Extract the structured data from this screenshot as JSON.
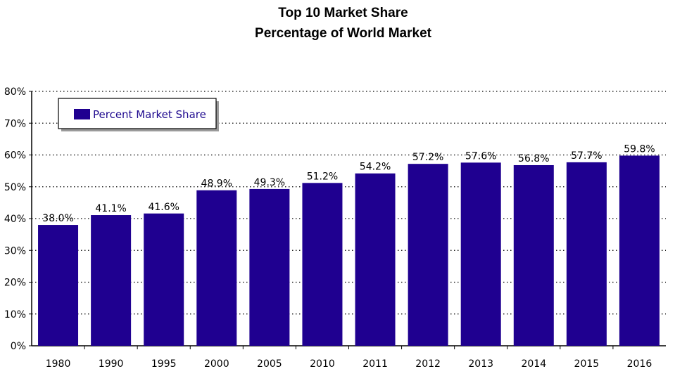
{
  "chart_data": {
    "type": "bar",
    "title": "Top 10 Market Share",
    "subtitle": "Percentage of World Market",
    "categories": [
      "1980",
      "1990",
      "1995",
      "2000",
      "2005",
      "2010",
      "2011",
      "2012",
      "2013",
      "2014",
      "2015",
      "2016"
    ],
    "series": [
      {
        "name": "Percent Market Share",
        "values": [
          38.0,
          41.1,
          41.6,
          48.9,
          49.3,
          51.2,
          54.2,
          57.2,
          57.6,
          56.8,
          57.7,
          59.8
        ],
        "labels": [
          "38.0%",
          "41.1%",
          "41.6%",
          "48.9%",
          "49.3%",
          "51.2%",
          "54.2%",
          "57.2%",
          "57.6%",
          "56.8%",
          "57.7%",
          "59.8%"
        ]
      }
    ],
    "yticks": [
      "0%",
      "10%",
      "20%",
      "30%",
      "40%",
      "50%",
      "60%",
      "70%",
      "80%"
    ],
    "ylim": [
      0,
      80
    ],
    "grid": true,
    "legend_position": "top-left",
    "colors": {
      "bar": "#1f0090",
      "legend_text": "#1f0a8f",
      "grid": "#000000"
    }
  }
}
